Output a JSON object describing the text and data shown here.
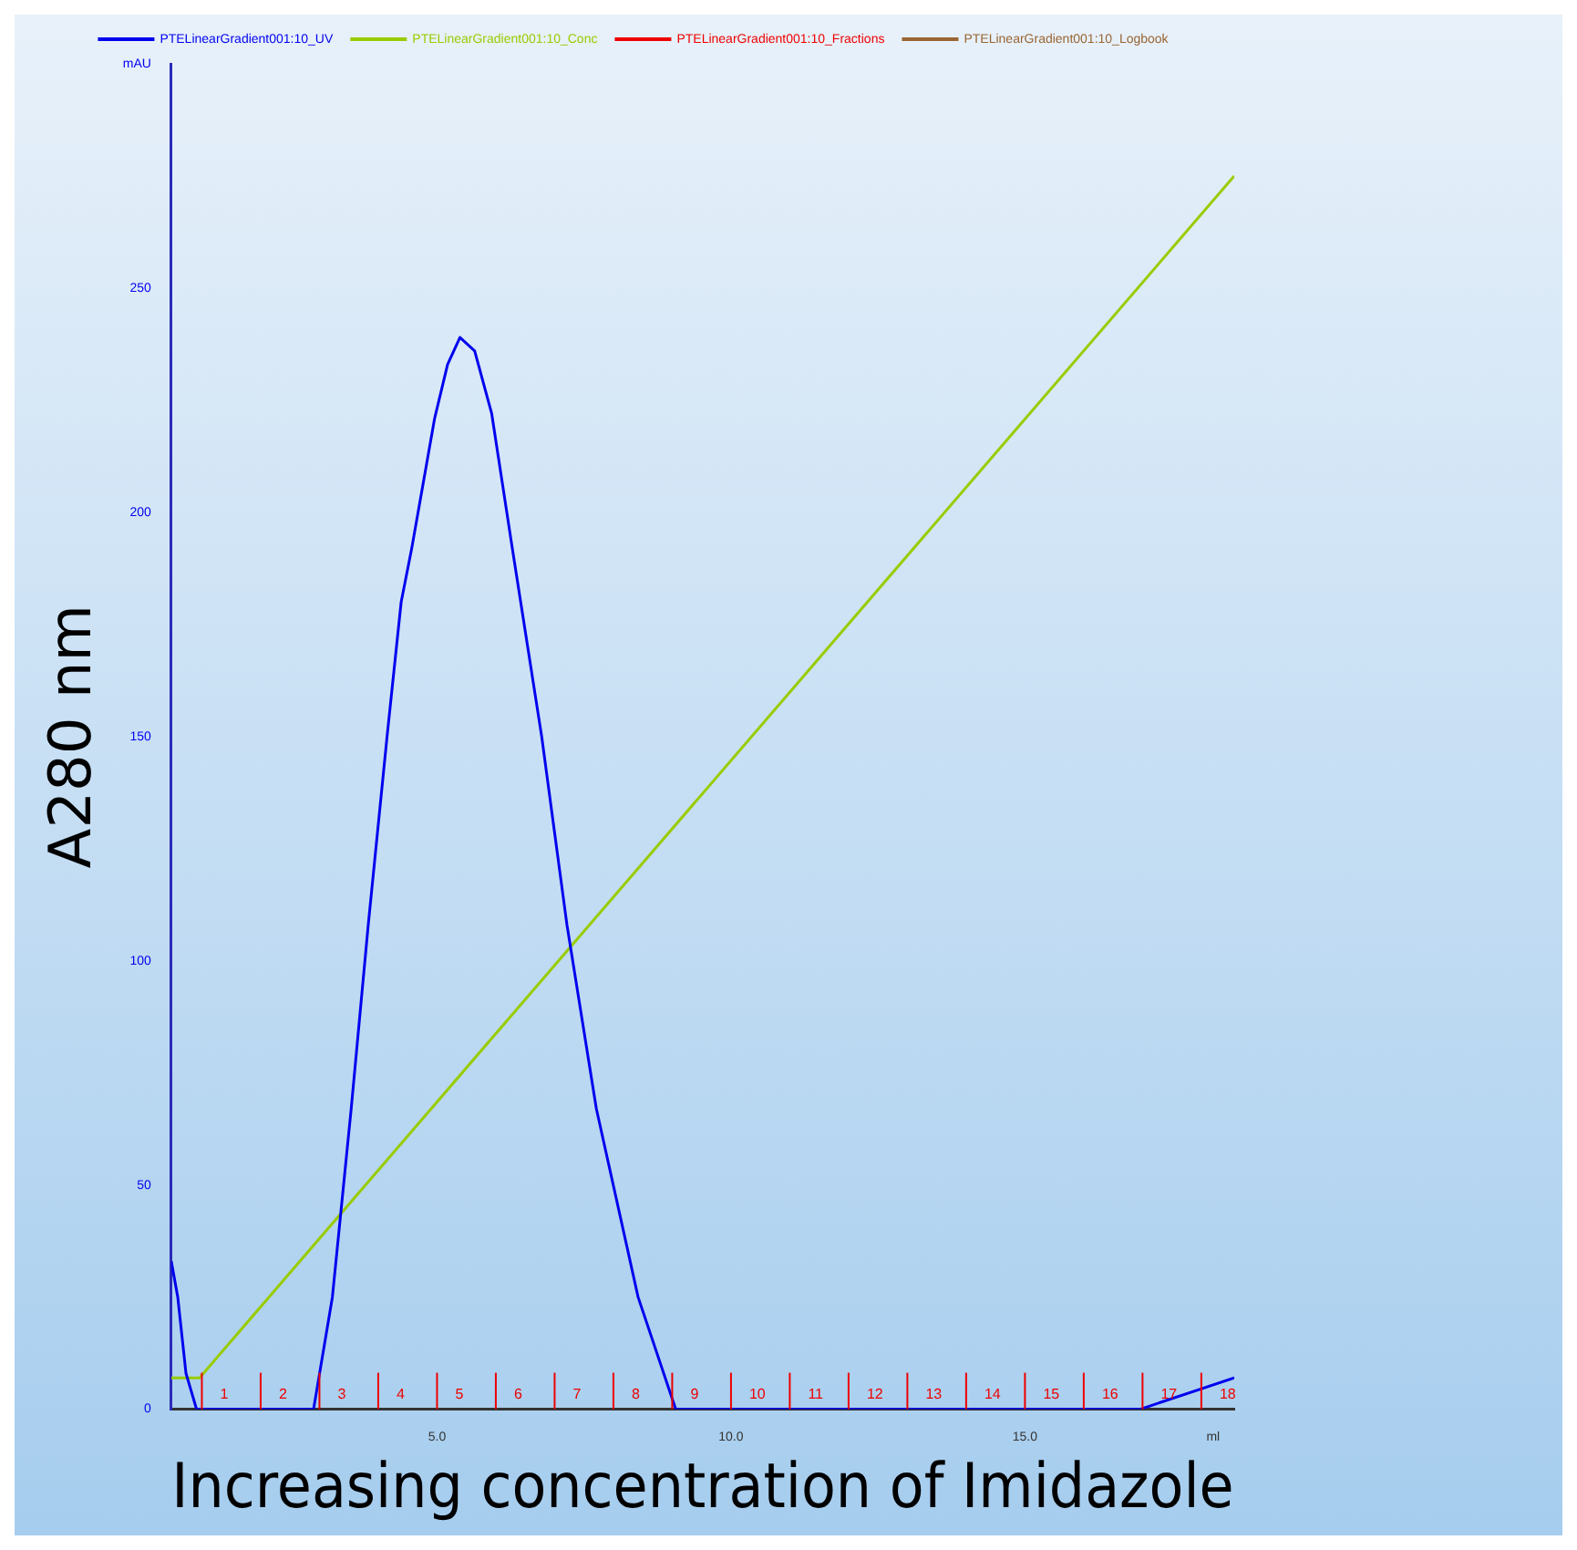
{
  "chart_data": {
    "type": "line",
    "xlabel": "Increasing concentration of Imidazole",
    "ylabel": "A280 nm",
    "xlim": [
      0.48,
      18.56
    ],
    "ylim": [
      0,
      300
    ],
    "xticks": [
      {
        "value": 5,
        "label": "5.0"
      },
      {
        "value": 10,
        "label": "10.0"
      },
      {
        "value": 15,
        "label": "15.0"
      },
      {
        "value": 18.2,
        "label": "ml"
      }
    ],
    "yticks": [
      0,
      50,
      100,
      150,
      200,
      250,
      {
        "value": 300,
        "label": "mAU"
      }
    ],
    "grid": false,
    "legend": "top",
    "marker": "none",
    "line_style": "solid",
    "series": [
      {
        "name": "PTELinearGradient001:10_UV",
        "color": "#0000ee",
        "x": [
          0.48,
          0.59,
          0.73,
          0.91,
          2.9,
          3.22,
          3.54,
          3.83,
          4.15,
          4.39,
          4.57,
          4.96,
          5.18,
          5.39,
          5.64,
          5.93,
          6.28,
          6.78,
          7.21,
          7.71,
          8.42,
          9.06,
          16.96,
          18.56
        ],
        "values": [
          33,
          25,
          8,
          0,
          0,
          25,
          67,
          108,
          150,
          180,
          192,
          221,
          233,
          239,
          236,
          222,
          192,
          150,
          108,
          67,
          25,
          0,
          0,
          7
        ]
      },
      {
        "name": "PTELinearGradient001:10_Conc",
        "color": "#99cc00",
        "x": [
          0.48,
          0.96,
          18.56
        ],
        "values": [
          7,
          7,
          275
        ]
      },
      {
        "name": "PTELinearGradient001:10_Fractions",
        "color": "#ee0000"
      },
      {
        "name": "PTELinearGradient001:10_Logbook",
        "color": "#996633"
      }
    ],
    "ref_lines": [
      {
        "axis": "x",
        "value": 1,
        "label": "1",
        "color": "#ee0000"
      },
      {
        "axis": "x",
        "value": 2,
        "label": "2",
        "color": "#ee0000"
      },
      {
        "axis": "x",
        "value": 3,
        "label": "3",
        "color": "#ee0000"
      },
      {
        "axis": "x",
        "value": 4,
        "label": "4",
        "color": "#ee0000"
      },
      {
        "axis": "x",
        "value": 5,
        "label": "5",
        "color": "#ee0000"
      },
      {
        "axis": "x",
        "value": 6,
        "label": "6",
        "color": "#ee0000"
      },
      {
        "axis": "x",
        "value": 7,
        "label": "7",
        "color": "#ee0000"
      },
      {
        "axis": "x",
        "value": 8,
        "label": "8",
        "color": "#ee0000"
      },
      {
        "axis": "x",
        "value": 9,
        "label": "9",
        "color": "#ee0000"
      },
      {
        "axis": "x",
        "value": 10,
        "label": "10",
        "color": "#ee0000"
      },
      {
        "axis": "x",
        "value": 11,
        "label": "11",
        "color": "#ee0000"
      },
      {
        "axis": "x",
        "value": 12,
        "label": "12",
        "color": "#ee0000"
      },
      {
        "axis": "x",
        "value": 13,
        "label": "13",
        "color": "#ee0000"
      },
      {
        "axis": "x",
        "value": 14,
        "label": "14",
        "color": "#ee0000"
      },
      {
        "axis": "x",
        "value": 15,
        "label": "15",
        "color": "#ee0000"
      },
      {
        "axis": "x",
        "value": 16,
        "label": "16",
        "color": "#ee0000"
      },
      {
        "axis": "x",
        "value": 17,
        "label": "17",
        "color": "#ee0000"
      },
      {
        "axis": "x",
        "value": 18,
        "label": "18",
        "color": "#ee0000"
      }
    ]
  }
}
